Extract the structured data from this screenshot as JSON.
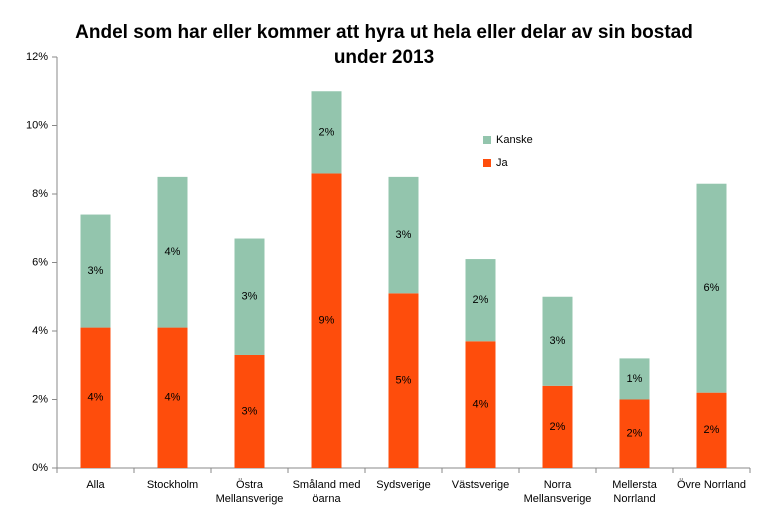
{
  "chart_data": {
    "type": "stacked_bar",
    "title": "Andel som har eller kommer att hyra ut hela eller delar av sin bostad\nunder 2013",
    "categories": [
      "Alla",
      "Stockholm",
      "Östra\nMellansverige",
      "Småland med\nöarna",
      "Sydsverige",
      "Västsverige",
      "Norra\nMellansverige",
      "Mellersta\nNorrland",
      "Övre Norrland"
    ],
    "series": [
      {
        "name": "Ja",
        "color": "#fe4d0c",
        "values": [
          4.1,
          4.1,
          3.3,
          8.6,
          5.1,
          3.7,
          2.4,
          2.0,
          2.2
        ],
        "value_labels": [
          "4%",
          "4%",
          "3%",
          "9%",
          "5%",
          "4%",
          "2%",
          "2%",
          "2%"
        ]
      },
      {
        "name": "Kanske",
        "color": "#93c5ad",
        "values": [
          3.3,
          4.4,
          3.4,
          2.4,
          3.4,
          2.4,
          2.6,
          1.2,
          6.1
        ],
        "value_labels": [
          "3%",
          "4%",
          "3%",
          "2%",
          "3%",
          "2%",
          "3%",
          "1%",
          "6%"
        ]
      }
    ],
    "ylim": [
      0,
      12
    ],
    "yticks": [
      {
        "value": 0,
        "label": "0%"
      },
      {
        "value": 2,
        "label": "2%"
      },
      {
        "value": 4,
        "label": "4%"
      },
      {
        "value": 6,
        "label": "6%"
      },
      {
        "value": 8,
        "label": "8%"
      },
      {
        "value": 10,
        "label": "10%"
      },
      {
        "value": 12,
        "label": "12%"
      }
    ],
    "legend": "upper-center"
  }
}
